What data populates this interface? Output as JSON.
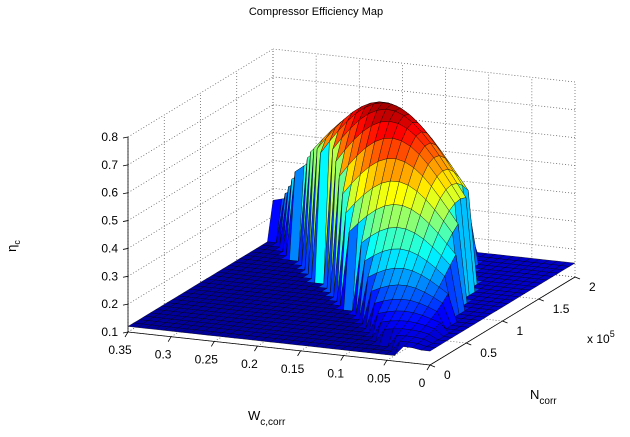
{
  "chart_data": {
    "type": "surface",
    "title": "Compressor Efficiency Map",
    "zlabel": "η",
    "zlabel_sub": "c",
    "xlabel": "W",
    "xlabel_sub": "c,corr",
    "ylabel": "N",
    "ylabel_sub": "corr",
    "y_multiplier": "x 10",
    "y_multiplier_exp": "5",
    "x_ticks": [
      "0.35",
      "0.3",
      "0.25",
      "0.2",
      "0.15",
      "0.1",
      "0.05",
      "0"
    ],
    "y_ticks": [
      "0",
      "0.5",
      "1",
      "1.5",
      "2"
    ],
    "z_ticks": [
      "0.1",
      "0.2",
      "0.3",
      "0.4",
      "0.5",
      "0.6",
      "0.7",
      "0.8"
    ],
    "xlim": [
      0,
      0.35
    ],
    "ylim": [
      0,
      200000
    ],
    "zlim": [
      0.1,
      0.8
    ],
    "colormap": "jet",
    "grid": true,
    "surface": {
      "peak_efficiency": 0.78,
      "peak_flow": 0.19,
      "peak_speed": 130000,
      "floor_efficiency": 0.15,
      "surge_flow_at_max_speed": 0.12,
      "choke_flow_at_max_speed": 0.35
    }
  }
}
